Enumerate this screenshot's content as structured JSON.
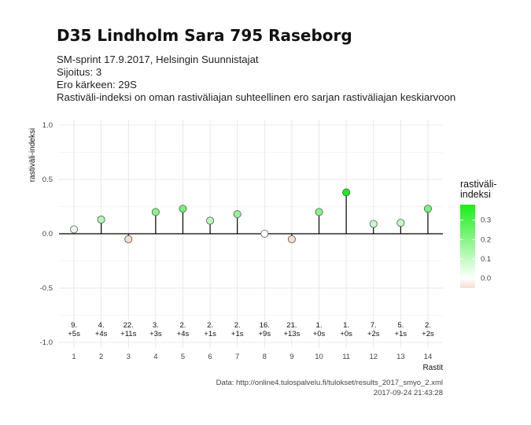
{
  "header": {
    "title": "D35 Lindholm Sara 795 Raseborg",
    "subtitle_lines": [
      "SM-sprint 17.9.2017, Helsingin Suunnistajat",
      "Sijoitus: 3",
      "Ero kärkeen: 29S",
      "Rastiväli-indeksi on oman rastiväliajan suhteellinen ero sarjan rastiväliajan keskiarvoon"
    ]
  },
  "caption": {
    "source": "Data: http://online4.tulospalvelu.fi/tulokset/results_2017_smyo_2.xml",
    "timestamp": "2017-09-24 21:43:28"
  },
  "colors": {
    "low": "#f6ddd2",
    "mid": "#ffffff",
    "high": "#19ee19",
    "grid": "#e3e3e3",
    "zero_line": "#000000"
  },
  "chart_data": {
    "type": "lollipop",
    "xlabel": "Rastit",
    "ylabel": "rastiväli-indeksi",
    "ylim": [
      -1.05,
      1.05
    ],
    "yticks": [
      -1.0,
      -0.5,
      0.0,
      0.5,
      1.0
    ],
    "ytick_labels": [
      "-1.0",
      "-0.5",
      "0.0",
      "0.5",
      "1.0"
    ],
    "x": [
      1,
      2,
      3,
      4,
      5,
      6,
      7,
      8,
      9,
      10,
      11,
      12,
      13,
      14
    ],
    "x_labels": [
      "1",
      "2",
      "3",
      "4",
      "5",
      "6",
      "7",
      "8",
      "9",
      "10",
      "11",
      "12",
      "13",
      "14"
    ],
    "values": [
      0.04,
      0.13,
      -0.05,
      0.2,
      0.23,
      0.12,
      0.18,
      0.0,
      -0.05,
      0.2,
      0.38,
      0.09,
      0.1,
      0.23
    ],
    "annotations_rank": [
      "9.",
      "4.",
      "22.",
      "3.",
      "2.",
      "2.",
      "2.",
      "16.",
      "21.",
      "1.",
      "1.",
      "7.",
      "5.",
      "2."
    ],
    "annotations_diff": [
      "+5s",
      "+4s",
      "+11s",
      "+3s",
      "+4s",
      "+1s",
      "+1s",
      "+9s",
      "+13s",
      "+0s",
      "+0s",
      "+2s",
      "+1s",
      "+2s"
    ],
    "grid": true,
    "legend": {
      "title_lines": [
        "rastiväli-",
        "indeksi"
      ],
      "ticks": [
        0.0,
        0.1,
        0.2,
        0.3
      ],
      "tick_labels": [
        "0.0",
        "0.1",
        "0.2",
        "0.3"
      ],
      "range": [
        -0.05,
        0.38
      ],
      "placement": "right"
    }
  }
}
